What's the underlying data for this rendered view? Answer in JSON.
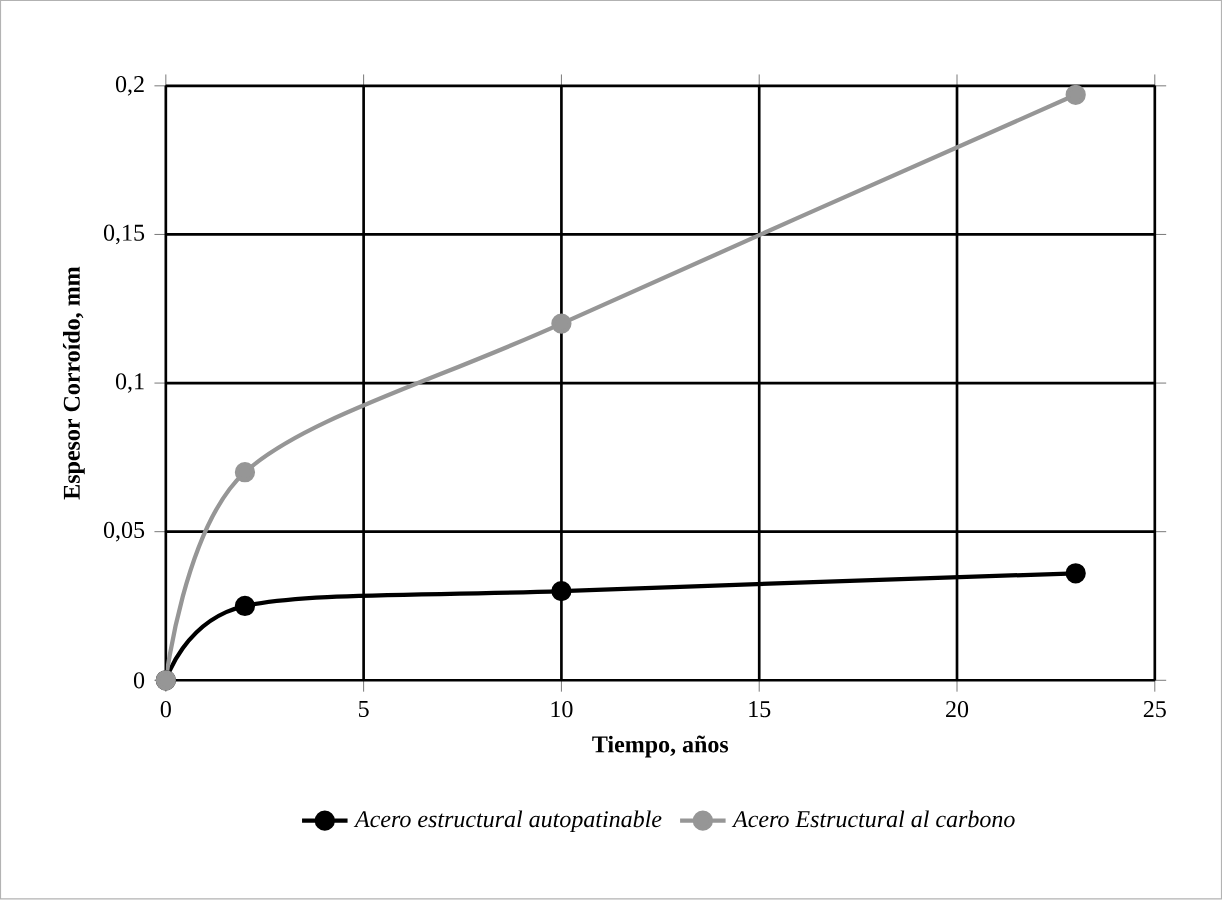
{
  "chart_data": {
    "type": "line",
    "xlabel": "Tiempo, años",
    "ylabel": "Espesor Corroído, mm",
    "x": [
      0,
      2,
      10,
      23
    ],
    "series": [
      {
        "name": "Acero estructural autopatinable",
        "color": "#000000",
        "values": [
          0,
          0.025,
          0.03,
          0.036
        ]
      },
      {
        "name": "Acero Estructural al carbono",
        "color": "#969696",
        "values": [
          0,
          0.07,
          0.12,
          0.197
        ]
      }
    ],
    "xlim": [
      0,
      25
    ],
    "xticks": [
      0,
      5,
      10,
      15,
      20,
      25
    ],
    "ylim": [
      0,
      0.2
    ],
    "yticks": [
      0,
      {
        "value": 0.05,
        "label": "0,05"
      },
      {
        "value": 0.1,
        "label": "0,1"
      },
      {
        "value": 0.15,
        "label": "0,15"
      },
      {
        "value": 0.2,
        "label": "0,2"
      }
    ],
    "grid": true,
    "legend": "bottom",
    "marker": "circle",
    "line_style": "solid"
  }
}
